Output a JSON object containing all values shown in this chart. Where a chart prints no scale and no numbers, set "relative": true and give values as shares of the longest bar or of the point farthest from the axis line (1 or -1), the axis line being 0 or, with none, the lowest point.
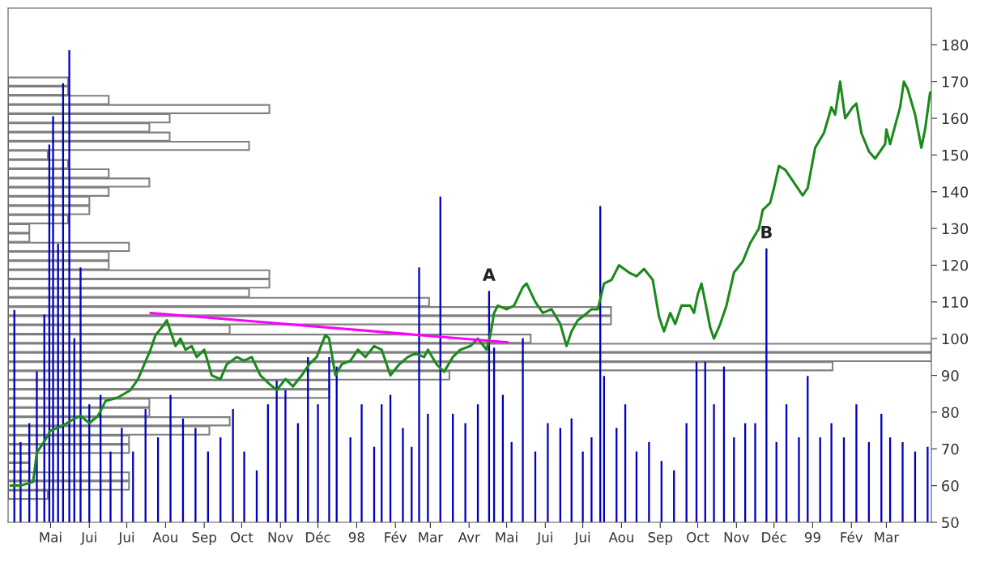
{
  "chart_data": [
    {
      "type": "line",
      "xlim": [
        "1997-03-28",
        "1999-04-06"
      ],
      "ylim": [
        50,
        190
      ],
      "yticks": [
        50,
        60,
        70,
        80,
        90,
        100,
        110,
        120,
        130,
        140,
        150,
        160,
        170,
        180
      ],
      "xticks": [
        {
          "value": "1997-05-01",
          "label": "Mai"
        },
        {
          "value": "1997-06-01",
          "label": "Jui"
        },
        {
          "value": "1997-07-01",
          "label": "Jui"
        },
        {
          "value": "1997-08-01",
          "label": "Aou"
        },
        {
          "value": "1997-09-01",
          "label": "Sep"
        },
        {
          "value": "1997-10-01",
          "label": "Oct"
        },
        {
          "value": "1997-11-01",
          "label": "Nov"
        },
        {
          "value": "1997-12-01",
          "label": "Déc"
        },
        {
          "value": "1998-01-01",
          "label": "98"
        },
        {
          "value": "1998-02-01",
          "label": "Fév"
        },
        {
          "value": "1998-03-01",
          "label": "Mar"
        },
        {
          "value": "1998-04-01",
          "label": "Avr"
        },
        {
          "value": "1998-05-01",
          "label": "Mai"
        },
        {
          "value": "1998-06-01",
          "label": "Jui"
        },
        {
          "value": "1998-07-01",
          "label": "Jui"
        },
        {
          "value": "1998-08-01",
          "label": "Aou"
        },
        {
          "value": "1998-09-01",
          "label": "Sep"
        },
        {
          "value": "1998-10-01",
          "label": "Oct"
        },
        {
          "value": "1998-11-01",
          "label": "Nov"
        },
        {
          "value": "1998-12-01",
          "label": "Déc"
        },
        {
          "value": "1999-01-01",
          "label": "99"
        },
        {
          "value": "1999-02-01",
          "label": "Fév"
        },
        {
          "value": "1999-03-01",
          "label": "Mar"
        }
      ],
      "series": [
        {
          "color": "#1a8a1a",
          "x": [
            "1997-03-30",
            "1997-04-07",
            "1997-04-17",
            "1997-04-20",
            "1997-04-26",
            "1997-05-01",
            "1997-05-09",
            "1997-05-19",
            "1997-05-25",
            "1997-06-01",
            "1997-06-08",
            "1997-06-14",
            "1997-06-24",
            "1997-07-04",
            "1997-07-10",
            "1997-07-15",
            "1997-07-20",
            "1997-07-24",
            "1997-07-29",
            "1997-08-02",
            "1997-08-05",
            "1997-08-09",
            "1997-08-13",
            "1997-08-17",
            "1997-08-22",
            "1997-08-26",
            "1997-09-01",
            "1997-09-07",
            "1997-09-14",
            "1997-09-19",
            "1997-09-27",
            "1997-10-03",
            "1997-10-09",
            "1997-10-16",
            "1997-10-22",
            "1997-10-29",
            "1997-11-05",
            "1997-11-11",
            "1997-11-18",
            "1997-11-24",
            "1997-11-30",
            "1997-12-07",
            "1997-12-10",
            "1997-12-15",
            "1997-12-20",
            "1997-12-27",
            "1998-01-02",
            "1998-01-08",
            "1998-01-15",
            "1998-01-21",
            "1998-01-28",
            "1998-02-04",
            "1998-02-11",
            "1998-02-17",
            "1998-02-24",
            "1998-02-27",
            "1998-03-06",
            "1998-03-12",
            "1998-03-19",
            "1998-03-25",
            "1998-04-02",
            "1998-04-08",
            "1998-04-15",
            "1998-04-18",
            "1998-04-21",
            "1998-04-24",
            "1998-05-01",
            "1998-05-07",
            "1998-05-14",
            "1998-05-17",
            "1998-05-24",
            "1998-05-30",
            "1998-06-06",
            "1998-06-13",
            "1998-06-18",
            "1998-06-22",
            "1998-06-27",
            "1998-07-01",
            "1998-07-08",
            "1998-07-13",
            "1998-07-18",
            "1998-07-24",
            "1998-07-30",
            "1998-08-07",
            "1998-08-13",
            "1998-08-19",
            "1998-08-26",
            "1998-08-31",
            "1998-09-04",
            "1998-09-09",
            "1998-09-13",
            "1998-09-18",
            "1998-09-25",
            "1998-09-28",
            "1998-10-01",
            "1998-10-04",
            "1998-10-07",
            "1998-10-11",
            "1998-10-14",
            "1998-10-19",
            "1998-10-24",
            "1998-10-30",
            "1998-11-06",
            "1998-11-12",
            "1998-11-19",
            "1998-11-22",
            "1998-11-28",
            "1998-12-01",
            "1998-12-05",
            "1998-12-10",
            "1998-12-16",
            "1998-12-24",
            "1998-12-28",
            "1999-01-03",
            "1999-01-10",
            "1999-01-16",
            "1999-01-19",
            "1999-01-23",
            "1999-01-27",
            "1999-02-02",
            "1999-02-05",
            "1999-02-09",
            "1999-02-15",
            "1999-02-20",
            "1999-02-28",
            "1999-03-01",
            "1999-03-04",
            "1999-03-12",
            "1999-03-15",
            "1999-03-18",
            "1999-03-24",
            "1999-03-29",
            "1999-04-01",
            "1999-04-05"
          ],
          "values": [
            60,
            60,
            61,
            69,
            72,
            75,
            76,
            78,
            79,
            77,
            79,
            83,
            84,
            86,
            89,
            93,
            97,
            101,
            103,
            105,
            102,
            98,
            100,
            97,
            98,
            95,
            97,
            90,
            89,
            93,
            95,
            94,
            95,
            90,
            88,
            86,
            89,
            87,
            90,
            93,
            95,
            101,
            100,
            90,
            93,
            94,
            97,
            95,
            98,
            97,
            90,
            93,
            95,
            96,
            95,
            97,
            93,
            91,
            95,
            97,
            98,
            100,
            97,
            101,
            107,
            109,
            108,
            109,
            114,
            115,
            110,
            107,
            108,
            104,
            98,
            102,
            105,
            106,
            108,
            108,
            115,
            116,
            120,
            118,
            117,
            119,
            116,
            106,
            102,
            107,
            104,
            109,
            109,
            107,
            112,
            115,
            110,
            103,
            100,
            104,
            109,
            118,
            121,
            126,
            130,
            135,
            137,
            141,
            147,
            146,
            143,
            139,
            141,
            152,
            156,
            163,
            161,
            170,
            160,
            163,
            164,
            156,
            151,
            149,
            153,
            157,
            153,
            163,
            170,
            168,
            161,
            152,
            157,
            167
          ]
        },
        {
          "type": "line",
          "color": "#ff00ff",
          "x": [
            "1997-07-20",
            "1998-05-02"
          ],
          "values": [
            107,
            99
          ]
        }
      ]
    },
    {
      "type": "bar",
      "relative": true,
      "tick_labels": false,
      "xlim": [
        "1997-03-28",
        "1999-04-06"
      ],
      "color": "#0000c0",
      "annotations": [
        {
          "text": "A",
          "x": "1998-04-17",
          "y": 0.49
        },
        {
          "text": "B",
          "x": "1998-11-25",
          "y": 0.58
        }
      ],
      "x": [
        "1997-04-02",
        "1997-04-07",
        "1997-04-14",
        "1997-04-20",
        "1997-04-26",
        "1997-04-30",
        "1997-05-03",
        "1997-05-07",
        "1997-05-11",
        "1997-05-16",
        "1997-05-20",
        "1997-05-25",
        "1997-06-01",
        "1997-06-10",
        "1997-06-18",
        "1997-06-27",
        "1997-07-06",
        "1997-07-16",
        "1997-07-26",
        "1997-08-05",
        "1997-08-15",
        "1997-08-25",
        "1997-09-04",
        "1997-09-14",
        "1997-09-24",
        "1997-10-03",
        "1997-10-13",
        "1997-10-22",
        "1997-10-29",
        "1997-11-05",
        "1997-11-15",
        "1997-11-23",
        "1997-12-01",
        "1997-12-10",
        "1997-12-16",
        "1997-12-27",
        "1998-01-05",
        "1998-01-15",
        "1998-01-21",
        "1998-01-28",
        "1998-02-07",
        "1998-02-14",
        "1998-02-20",
        "1998-02-27",
        "1998-03-09",
        "1998-03-19",
        "1998-03-29",
        "1998-04-08",
        "1998-04-17",
        "1998-04-21",
        "1998-04-28",
        "1998-05-05",
        "1998-05-14",
        "1998-05-24",
        "1998-06-03",
        "1998-06-13",
        "1998-06-22",
        "1998-07-01",
        "1998-07-08",
        "1998-07-15",
        "1998-07-18",
        "1998-07-28",
        "1998-08-04",
        "1998-08-13",
        "1998-08-23",
        "1998-09-02",
        "1998-09-12",
        "1998-09-22",
        "1998-09-30",
        "1998-10-07",
        "1998-10-14",
        "1998-10-22",
        "1998-10-30",
        "1998-11-08",
        "1998-11-16",
        "1998-11-25",
        "1998-12-03",
        "1998-12-11",
        "1998-12-21",
        "1998-12-28",
        "1999-01-07",
        "1999-01-16",
        "1999-01-26",
        "1999-02-05",
        "1999-02-15",
        "1999-02-25",
        "1999-03-04",
        "1999-03-14",
        "1999-03-24",
        "1999-04-03"
      ],
      "values": [
        0.45,
        0.17,
        0.21,
        0.32,
        0.44,
        0.8,
        0.86,
        0.59,
        0.93,
        1,
        0.39,
        0.54,
        0.25,
        0.27,
        0.15,
        0.2,
        0.15,
        0.24,
        0.18,
        0.27,
        0.22,
        0.2,
        0.15,
        0.18,
        0.24,
        0.15,
        0.11,
        0.25,
        0.3,
        0.28,
        0.21,
        0.35,
        0.25,
        0.35,
        0.33,
        0.18,
        0.25,
        0.16,
        0.25,
        0.27,
        0.2,
        0.16,
        0.54,
        0.23,
        0.69,
        0.23,
        0.21,
        0.25,
        0.49,
        0.37,
        0.27,
        0.17,
        0.39,
        0.15,
        0.21,
        0.2,
        0.22,
        0.15,
        0.18,
        0.67,
        0.31,
        0.2,
        0.25,
        0.15,
        0.17,
        0.13,
        0.11,
        0.21,
        0.34,
        0.34,
        0.25,
        0.33,
        0.18,
        0.21,
        0.21,
        0.58,
        0.17,
        0.25,
        0.18,
        0.31,
        0.18,
        0.21,
        0.18,
        0.25,
        0.17,
        0.23,
        0.18,
        0.17,
        0.15,
        0.16
      ]
    },
    {
      "type": "bar",
      "orientation": "horizontal",
      "relative": true,
      "tick_labels": false,
      "ylim": [
        50,
        190
      ],
      "color": "#808080",
      "x": [
        170,
        167.5,
        165,
        162.5,
        160,
        157.5,
        155,
        152.5,
        150,
        147.5,
        145,
        142.5,
        140,
        137.5,
        135,
        132.5,
        130,
        127.5,
        125,
        122.5,
        120,
        117.5,
        115,
        112.5,
        110,
        107.5,
        105,
        102.5,
        100,
        97.5,
        95,
        92.5,
        90,
        87.5,
        85,
        82.5,
        80,
        77.5,
        75,
        72.5,
        70,
        67.5,
        65,
        62.5,
        60,
        57.5
      ],
      "values": [
        0.065,
        0.065,
        0.109,
        0.283,
        0.175,
        0.153,
        0.175,
        0.261,
        0.043,
        0.065,
        0.109,
        0.153,
        0.109,
        0.088,
        0.088,
        0.065,
        0.023,
        0.023,
        0.131,
        0.109,
        0.109,
        0.283,
        0.283,
        0.261,
        0.456,
        0.653,
        0.653,
        0.24,
        0.566,
        1,
        1,
        0.893,
        0.478,
        0.348,
        0.348,
        0.153,
        0.153,
        0.24,
        0.218,
        0.131,
        0.131,
        0.023,
        0.023,
        0.131,
        0.131,
        0.043
      ]
    }
  ]
}
